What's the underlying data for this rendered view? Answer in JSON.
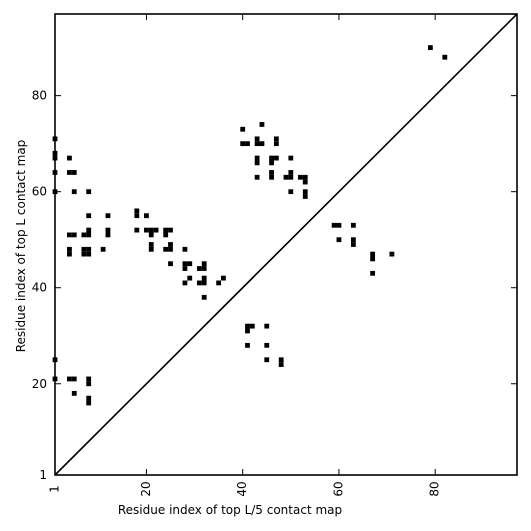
{
  "chart_data": {
    "type": "heatmap",
    "xlabel": "Residue index of top L/5 contact map",
    "ylabel": "Residue index of top L contact map",
    "xlim": [
      1,
      97
    ],
    "ylim": [
      1,
      97
    ],
    "x_ticks": [
      1,
      20,
      40,
      60,
      80
    ],
    "y_ticks": [
      1,
      20,
      40,
      60,
      80
    ],
    "diagonal": true,
    "grid": false,
    "colors": {
      "contact": "#000000",
      "background": "#ffffff",
      "diagonal": "#000000"
    },
    "upper_contacts": [
      [
        1,
        60
      ],
      [
        1,
        64
      ],
      [
        1,
        67
      ],
      [
        1,
        68
      ],
      [
        1,
        71
      ],
      [
        4,
        47
      ],
      [
        4,
        48
      ],
      [
        4,
        51
      ],
      [
        4,
        64
      ],
      [
        4,
        67
      ],
      [
        5,
        51
      ],
      [
        5,
        60
      ],
      [
        5,
        64
      ],
      [
        7,
        47
      ],
      [
        7,
        48
      ],
      [
        7,
        51
      ],
      [
        8,
        47
      ],
      [
        8,
        48
      ],
      [
        8,
        51
      ],
      [
        8,
        52
      ],
      [
        8,
        55
      ],
      [
        8,
        60
      ],
      [
        11,
        48
      ],
      [
        12,
        51
      ],
      [
        12,
        52
      ],
      [
        12,
        55
      ],
      [
        18,
        52
      ],
      [
        18,
        55
      ],
      [
        18,
        56
      ],
      [
        20,
        52
      ],
      [
        20,
        55
      ],
      [
        21,
        48
      ],
      [
        21,
        49
      ],
      [
        21,
        51
      ],
      [
        21,
        52
      ],
      [
        22,
        52
      ],
      [
        24,
        48
      ],
      [
        24,
        51
      ],
      [
        24,
        52
      ],
      [
        25,
        45
      ],
      [
        25,
        48
      ],
      [
        25,
        49
      ],
      [
        25,
        52
      ],
      [
        28,
        41
      ],
      [
        28,
        44
      ],
      [
        28,
        45
      ],
      [
        28,
        48
      ],
      [
        29,
        42
      ],
      [
        29,
        45
      ],
      [
        31,
        41
      ],
      [
        31,
        44
      ],
      [
        32,
        38
      ],
      [
        32,
        41
      ],
      [
        32,
        42
      ],
      [
        32,
        44
      ],
      [
        32,
        45
      ],
      [
        35,
        41
      ],
      [
        36,
        42
      ],
      [
        40,
        70
      ],
      [
        40,
        73
      ],
      [
        41,
        70
      ],
      [
        43,
        63
      ],
      [
        43,
        66
      ],
      [
        43,
        67
      ],
      [
        43,
        70
      ],
      [
        43,
        71
      ],
      [
        44,
        70
      ],
      [
        44,
        74
      ],
      [
        46,
        63
      ],
      [
        46,
        64
      ],
      [
        46,
        66
      ],
      [
        46,
        67
      ],
      [
        47,
        67
      ],
      [
        47,
        70
      ],
      [
        47,
        71
      ],
      [
        49,
        63
      ],
      [
        50,
        60
      ],
      [
        50,
        63
      ],
      [
        50,
        64
      ],
      [
        50,
        67
      ],
      [
        52,
        63
      ],
      [
        53,
        59
      ],
      [
        53,
        60
      ],
      [
        53,
        62
      ],
      [
        53,
        63
      ],
      [
        59,
        53
      ],
      [
        60,
        50
      ],
      [
        60,
        53
      ],
      [
        63,
        49
      ],
      [
        63,
        50
      ],
      [
        63,
        53
      ],
      [
        67,
        43
      ],
      [
        67,
        46
      ],
      [
        67,
        47
      ],
      [
        71,
        47
      ],
      [
        79,
        90
      ],
      [
        82,
        88
      ]
    ],
    "lower_contacts": [
      [
        41,
        28
      ],
      [
        41,
        31
      ],
      [
        41,
        32
      ],
      [
        42,
        32
      ],
      [
        45,
        25
      ],
      [
        45,
        28
      ],
      [
        45,
        32
      ],
      [
        48,
        24
      ],
      [
        48,
        25
      ],
      [
        1,
        21
      ],
      [
        1,
        25
      ],
      [
        4,
        21
      ],
      [
        5,
        18
      ],
      [
        5,
        21
      ],
      [
        8,
        16
      ],
      [
        8,
        17
      ],
      [
        8,
        20
      ],
      [
        8,
        21
      ]
    ]
  }
}
